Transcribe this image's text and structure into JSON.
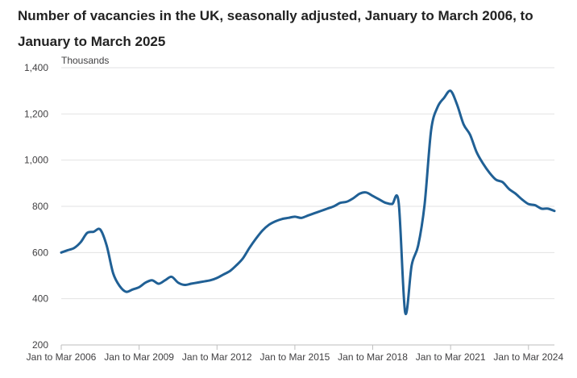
{
  "chart_data": {
    "type": "line",
    "title": "Number of vacancies in the UK, seasonally adjusted, January to March 2006, to January to March 2025",
    "ylabel": "Thousands",
    "xlabel": "",
    "ylim": [
      200,
      1400
    ],
    "yticks": [
      200,
      400,
      600,
      800,
      1000,
      1200,
      1400
    ],
    "ytick_labels": [
      "200",
      "400",
      "600",
      "800",
      "1,000",
      "1,200",
      "1,400"
    ],
    "xlim": [
      2006.0,
      2025.0
    ],
    "xticks": [
      {
        "x": 2006.0,
        "label": "Jan to Mar 2006"
      },
      {
        "x": 2009.0,
        "label": "Jan to Mar 2009"
      },
      {
        "x": 2012.0,
        "label": "Jan to Mar 2012"
      },
      {
        "x": 2015.0,
        "label": "Jan to Mar 2015"
      },
      {
        "x": 2018.0,
        "label": "Jan to Mar 2018"
      },
      {
        "x": 2021.0,
        "label": "Jan to Mar 2021"
      },
      {
        "x": 2024.0,
        "label": "Jan to Mar 2024"
      }
    ],
    "grid": true,
    "series": [
      {
        "color": "#206095",
        "x": [
          2006.0,
          2006.25,
          2006.5,
          2006.75,
          2007.0,
          2007.25,
          2007.5,
          2007.75,
          2008.0,
          2008.25,
          2008.5,
          2008.75,
          2009.0,
          2009.25,
          2009.5,
          2009.75,
          2010.0,
          2010.25,
          2010.5,
          2010.75,
          2011.0,
          2011.25,
          2011.5,
          2011.75,
          2012.0,
          2012.25,
          2012.5,
          2012.75,
          2013.0,
          2013.25,
          2013.5,
          2013.75,
          2014.0,
          2014.25,
          2014.5,
          2014.75,
          2015.0,
          2015.25,
          2015.5,
          2015.75,
          2016.0,
          2016.25,
          2016.5,
          2016.75,
          2017.0,
          2017.25,
          2017.5,
          2017.75,
          2018.0,
          2018.25,
          2018.5,
          2018.75,
          2019.0,
          2019.25,
          2019.5,
          2019.75,
          2020.0,
          2020.25,
          2020.5,
          2020.75,
          2021.0,
          2021.25,
          2021.5,
          2021.75,
          2022.0,
          2022.25,
          2022.5,
          2022.75,
          2023.0,
          2023.25,
          2023.5,
          2023.75,
          2024.0,
          2024.25,
          2024.5,
          2024.75,
          2025.0
        ],
        "values": [
          600,
          610,
          620,
          645,
          685,
          690,
          700,
          630,
          510,
          455,
          430,
          440,
          450,
          470,
          480,
          465,
          480,
          495,
          470,
          460,
          465,
          470,
          475,
          480,
          490,
          505,
          520,
          545,
          575,
          620,
          660,
          695,
          720,
          735,
          745,
          750,
          755,
          750,
          760,
          770,
          780,
          790,
          800,
          815,
          820,
          835,
          855,
          860,
          845,
          830,
          815,
          810,
          815,
          340,
          545,
          630,
          810,
          1130,
          1230,
          1270,
          1300,
          1240,
          1155,
          1110,
          1035,
          985,
          945,
          915,
          905,
          875,
          855,
          830,
          810,
          805,
          790,
          790,
          780
        ]
      }
    ]
  }
}
